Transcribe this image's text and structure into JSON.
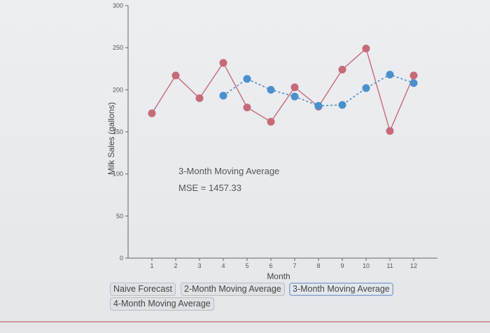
{
  "chart_data": {
    "type": "line",
    "xlabel": "Month",
    "ylabel": "Milk Sales (gallons)",
    "x": [
      1,
      2,
      3,
      4,
      5,
      6,
      7,
      8,
      9,
      10,
      11,
      12
    ],
    "ylim": [
      0,
      300
    ],
    "xlim": [
      0,
      13
    ],
    "yticks": [
      0,
      50,
      100,
      150,
      200,
      250,
      300
    ],
    "xticks": [
      1,
      2,
      3,
      4,
      5,
      6,
      7,
      8,
      9,
      10,
      11,
      12
    ],
    "series": [
      {
        "color": "#c76a78",
        "style": "solid",
        "values": [
          172,
          217,
          190,
          232,
          179,
          162,
          203,
          180,
          224,
          249,
          151,
          217
        ]
      },
      {
        "color": "#4a90cc",
        "style": "dashed",
        "values": [
          null,
          null,
          null,
          193,
          213,
          200,
          192,
          181,
          182,
          202,
          218,
          208
        ]
      }
    ],
    "annotations": [
      "3-Month Moving Average",
      "MSE = 1457.33"
    ],
    "grid": false
  },
  "buttons": [
    {
      "label": "Naive Forecast",
      "active": false
    },
    {
      "label": "2-Month Moving Average",
      "active": false
    },
    {
      "label": "3-Month Moving Average",
      "active": true
    },
    {
      "label": "4-Month Moving Average",
      "active": false
    }
  ]
}
